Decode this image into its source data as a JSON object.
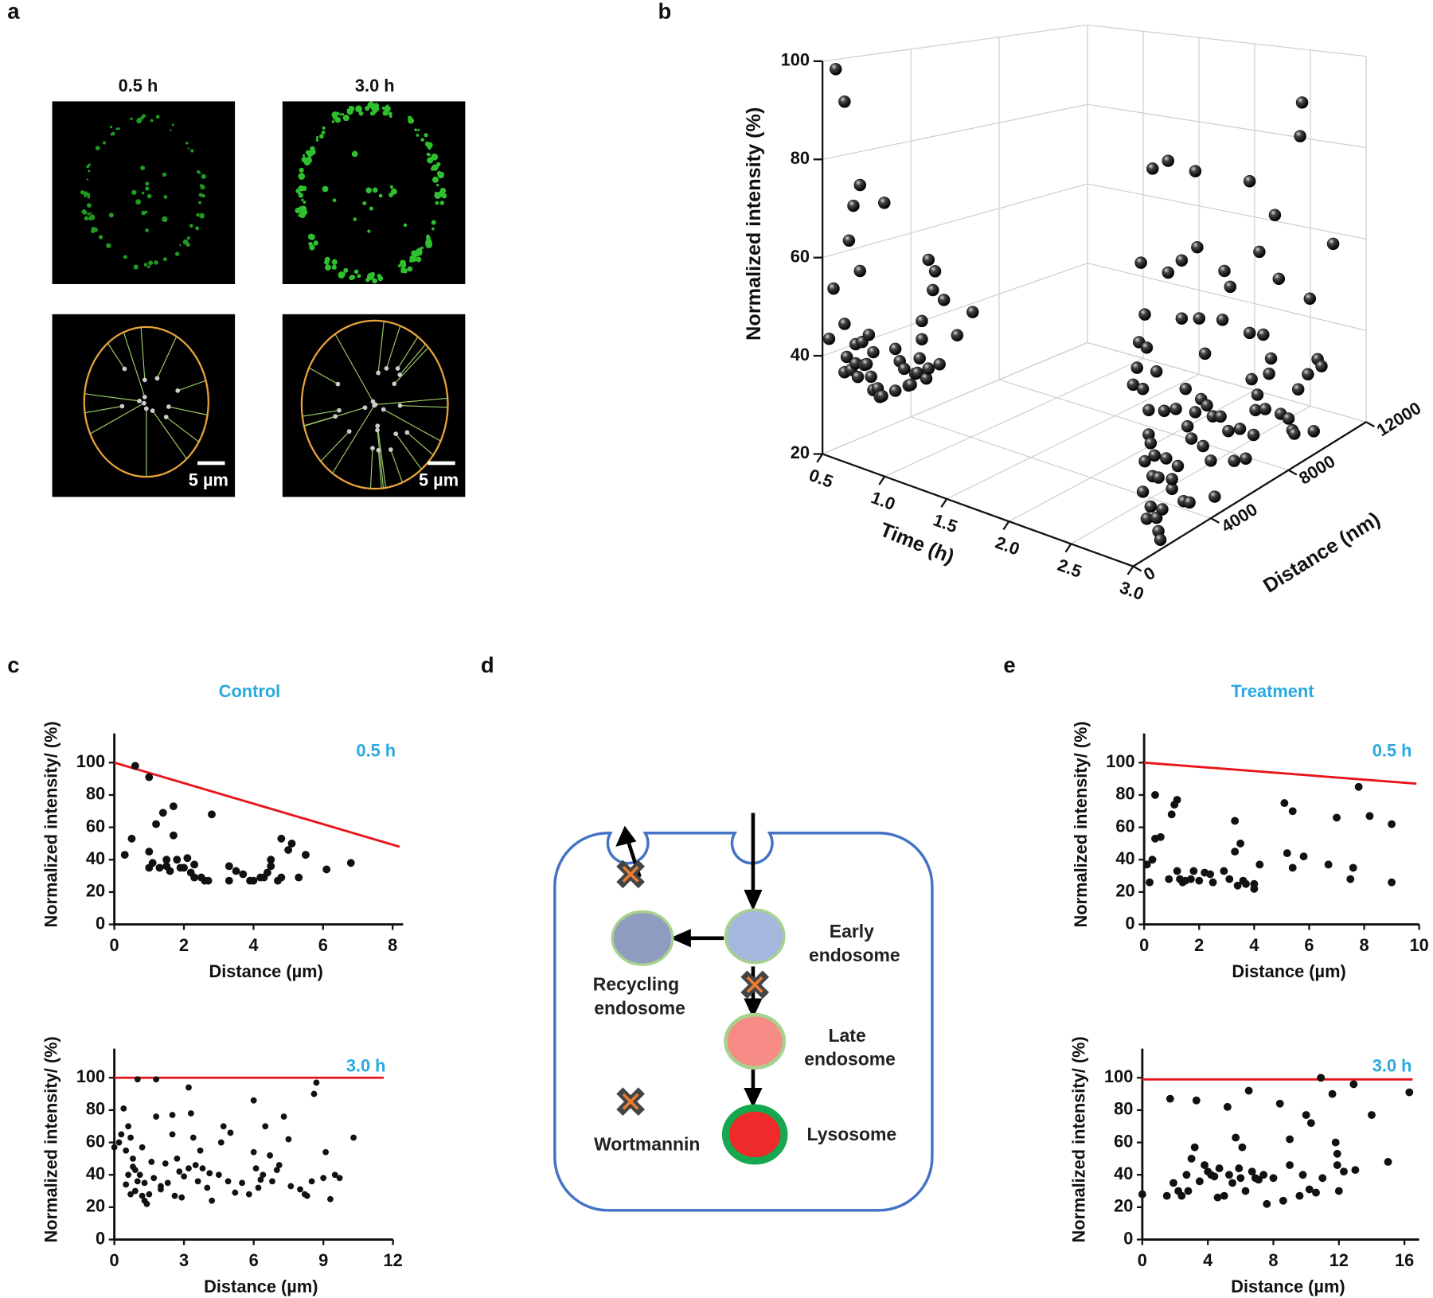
{
  "panel_labels": [
    "a",
    "b",
    "c",
    "d",
    "e"
  ],
  "panel_a": {
    "titles": [
      "0.5 h",
      "3.0 h"
    ],
    "scale_bar": "5 µm"
  },
  "diagram": {
    "nodes": [
      {
        "label": [
          "Early",
          "endosome"
        ]
      },
      {
        "label": [
          "Recycling",
          "endosome"
        ]
      },
      {
        "label": [
          "Late",
          "endosome"
        ]
      },
      {
        "label": [
          "Lysosome"
        ]
      }
    ],
    "legend": "Wortmannin"
  },
  "chart_data": [
    {
      "type": "scatter3d",
      "xlabel": "Time (h)",
      "ylabel": "Distance (nm)",
      "zlabel": "Normalized intensity (%)",
      "xlim": [
        0.5,
        3
      ],
      "xticks": [
        0.5,
        {
          "value": 1,
          "label": "1.0"
        },
        1.5,
        {
          "value": 2,
          "label": "2.0"
        },
        2.5,
        {
          "value": 3,
          "label": "3.0"
        }
      ],
      "ylim": [
        0,
        12000
      ],
      "yticks": [
        0,
        4000,
        8000,
        12000
      ],
      "zlim": [
        20,
        100
      ],
      "zticks": [
        20,
        40,
        60,
        80,
        100
      ],
      "grid": true,
      "series": [
        {
          "time": 0.5,
          "color": "#111111",
          "distance": [
            300,
            500,
            600,
            1000,
            1000,
            1000,
            1100,
            1200,
            1300,
            1400,
            1500,
            1500,
            1600,
            1700,
            1700,
            1800,
            1900,
            2000,
            2100,
            2200,
            2300,
            2300,
            2500,
            2600,
            2700,
            2800,
            3300,
            3300,
            3500,
            3700,
            3900,
            4000,
            4200,
            4300,
            4400,
            4500,
            4500,
            4700,
            4800,
            4800,
            5000,
            5100,
            5300,
            5500,
            6100,
            6800
          ],
          "intensity": [
            43,
            53,
            98,
            91,
            35,
            45,
            38,
            62,
            35,
            69,
            36,
            40,
            33,
            73,
            55,
            40,
            35,
            35,
            41,
            32,
            29,
            37,
            29,
            27,
            27,
            68,
            36,
            27,
            33,
            31,
            27,
            27,
            29,
            29,
            32,
            40,
            36,
            27,
            29,
            53,
            46,
            50,
            29,
            43,
            34,
            38
          ]
        },
        {
          "time": 3,
          "color": "#111111",
          "distance": [
            0,
            200,
            300,
            400,
            500,
            500,
            600,
            600,
            700,
            700,
            800,
            800,
            900,
            900,
            1000,
            1000,
            1100,
            1200,
            1200,
            1300,
            1300,
            1400,
            1500,
            1600,
            1700,
            1800,
            1800,
            2000,
            2000,
            2200,
            2300,
            2500,
            2500,
            2600,
            2700,
            2800,
            2900,
            3000,
            3200,
            3200,
            3300,
            3400,
            3500,
            3600,
            3700,
            3800,
            4000,
            4100,
            4200,
            4500,
            4600,
            4700,
            4900,
            5000,
            5200,
            5500,
            5800,
            6000,
            6000,
            6100,
            6200,
            6300,
            6400,
            6500,
            6700,
            6800,
            7000,
            7100,
            7300,
            7500,
            7600,
            8000,
            8200,
            8300,
            8500,
            8600,
            8700,
            9000,
            9100,
            9300,
            9500,
            9700,
            10300
          ],
          "intensity": [
            57,
            60,
            65,
            81,
            34,
            55,
            40,
            70,
            63,
            28,
            45,
            50,
            43,
            30,
            99,
            36,
            40,
            27,
            57,
            24,
            35,
            22,
            28,
            48,
            38,
            99,
            76,
            31,
            33,
            47,
            35,
            77,
            65,
            27,
            50,
            42,
            26,
            39,
            44,
            94,
            78,
            63,
            46,
            36,
            55,
            44,
            32,
            41,
            24,
            40,
            60,
            70,
            36,
            66,
            29,
            35,
            28,
            86,
            54,
            44,
            32,
            37,
            40,
            70,
            52,
            36,
            43,
            46,
            76,
            62,
            33,
            31,
            28,
            27,
            36,
            90,
            97,
            38,
            54,
            25,
            40,
            38,
            63
          ]
        }
      ]
    },
    {
      "type": "scatter",
      "title": "Control",
      "annotation": "0.5 h",
      "annotation_color": "#29a9e0",
      "xlabel": "Distance (µm)",
      "ylabel": "Normalized intensity/ (%)",
      "xlim": [
        0,
        8.3
      ],
      "xticks": [
        0,
        2,
        4,
        6,
        8
      ],
      "ylim": [
        0,
        118
      ],
      "yticks": [
        0,
        20,
        40,
        60,
        80,
        100
      ],
      "series": [
        {
          "color": "#111111",
          "x": [
            0.3,
            0.5,
            0.6,
            1.0,
            1.0,
            1.0,
            1.1,
            1.2,
            1.3,
            1.4,
            1.5,
            1.5,
            1.6,
            1.7,
            1.7,
            1.8,
            1.9,
            2.0,
            2.1,
            2.2,
            2.3,
            2.3,
            2.5,
            2.6,
            2.7,
            2.8,
            3.3,
            3.3,
            3.5,
            3.7,
            3.9,
            4.0,
            4.2,
            4.3,
            4.4,
            4.5,
            4.5,
            4.7,
            4.8,
            4.8,
            5.0,
            5.1,
            5.3,
            5.5,
            6.1,
            6.8
          ],
          "y": [
            43,
            53,
            98,
            91,
            35,
            45,
            38,
            62,
            35,
            69,
            36,
            40,
            33,
            73,
            55,
            40,
            35,
            35,
            41,
            32,
            29,
            37,
            29,
            27,
            27,
            68,
            36,
            27,
            33,
            31,
            27,
            27,
            29,
            29,
            32,
            40,
            36,
            27,
            29,
            53,
            46,
            50,
            29,
            43,
            34,
            38
          ]
        }
      ],
      "fit": {
        "color": "#e8141b",
        "x": [
          0,
          8.2
        ],
        "y": [
          100,
          48
        ]
      }
    },
    {
      "type": "scatter",
      "annotation": "3.0 h",
      "annotation_color": "#29a9e0",
      "xlabel": "Distance (µm)",
      "ylabel": "Normalized intensity/ (%)",
      "xlim": [
        0,
        12
      ],
      "xticks": [
        0,
        3,
        6,
        9,
        12
      ],
      "ylim": [
        0,
        118
      ],
      "yticks": [
        0,
        20,
        40,
        60,
        80,
        100
      ],
      "series": [
        {
          "color": "#111111",
          "x": [
            0,
            0.2,
            0.3,
            0.4,
            0.5,
            0.5,
            0.6,
            0.6,
            0.7,
            0.7,
            0.8,
            0.8,
            0.9,
            0.9,
            1,
            1,
            1.1,
            1.2,
            1.2,
            1.3,
            1.3,
            1.4,
            1.5,
            1.6,
            1.7,
            1.8,
            1.8,
            2,
            2,
            2.2,
            2.3,
            2.5,
            2.5,
            2.6,
            2.7,
            2.8,
            2.9,
            3,
            3.2,
            3.2,
            3.3,
            3.4,
            3.5,
            3.6,
            3.7,
            3.8,
            4,
            4.1,
            4.2,
            4.5,
            4.6,
            4.7,
            4.9,
            5,
            5.2,
            5.5,
            5.8,
            6,
            6,
            6.1,
            6.2,
            6.3,
            6.4,
            6.5,
            6.7,
            6.8,
            7,
            7.1,
            7.3,
            7.5,
            7.6,
            8,
            8.2,
            8.3,
            8.5,
            8.6,
            8.7,
            9,
            9.1,
            9.3,
            9.5,
            9.7,
            10.3
          ],
          "y": [
            57,
            60,
            65,
            81,
            34,
            55,
            40,
            70,
            63,
            28,
            45,
            50,
            43,
            30,
            99,
            36,
            40,
            27,
            57,
            24,
            35,
            22,
            28,
            48,
            38,
            99,
            76,
            31,
            33,
            47,
            35,
            77,
            65,
            27,
            50,
            42,
            26,
            39,
            44,
            94,
            78,
            63,
            46,
            36,
            55,
            44,
            32,
            41,
            24,
            40,
            60,
            70,
            36,
            66,
            29,
            35,
            28,
            86,
            54,
            44,
            32,
            37,
            40,
            70,
            52,
            36,
            43,
            46,
            76,
            62,
            33,
            31,
            28,
            27,
            36,
            90,
            97,
            38,
            54,
            25,
            40,
            38,
            63
          ]
        }
      ],
      "fit": {
        "color": "#e8141b",
        "x": [
          0,
          11.6
        ],
        "y": [
          100,
          100
        ]
      }
    },
    {
      "type": "scatter",
      "title": "Treatment",
      "annotation": "0.5 h",
      "annotation_color": "#29a9e0",
      "xlabel": "Distance (µm)",
      "ylabel": "Normalized intensity/ (%)",
      "xlim": [
        0,
        10
      ],
      "xticks": [
        0,
        2,
        4,
        6,
        8,
        10
      ],
      "ylim": [
        0,
        118
      ],
      "yticks": [
        0,
        20,
        40,
        60,
        80,
        100
      ],
      "series": [
        {
          "color": "#111111",
          "x": [
            0.1,
            0.2,
            0.3,
            0.4,
            0.4,
            0.6,
            0.9,
            1,
            1.1,
            1.2,
            1.2,
            1.3,
            1.4,
            1.5,
            1.7,
            1.8,
            2,
            2.2,
            2.4,
            2.5,
            2.9,
            3.1,
            3.3,
            3.3,
            3.4,
            3.5,
            3.6,
            3.7,
            4,
            4,
            4.2,
            5.1,
            5.2,
            5.4,
            5.4,
            5.8,
            6.7,
            7,
            7.5,
            7.6,
            7.8,
            8.2,
            9,
            9
          ],
          "y": [
            37,
            26,
            40,
            53,
            80,
            54,
            28,
            68,
            74,
            77,
            33,
            28,
            26,
            27,
            28,
            33,
            27,
            32,
            31,
            26,
            33,
            28,
            64,
            45,
            24,
            50,
            27,
            25,
            22,
            25,
            37,
            75,
            44,
            35,
            70,
            42,
            37,
            66,
            28,
            35,
            85,
            67,
            62,
            26
          ]
        }
      ],
      "fit": {
        "color": "#e8141b",
        "x": [
          0,
          9.9
        ],
        "y": [
          100,
          87
        ]
      }
    },
    {
      "type": "scatter",
      "annotation": "3.0 h",
      "annotation_color": "#29a9e0",
      "xlabel": "Distance (µm)",
      "ylabel": "Normalized intensity/ (%)",
      "xlim": [
        0,
        16.9
      ],
      "xticks": [
        0,
        4,
        8,
        12,
        16
      ],
      "ylim": [
        0,
        118
      ],
      "yticks": [
        0,
        20,
        40,
        60,
        80,
        100
      ],
      "series": [
        {
          "color": "#111111",
          "x": [
            0,
            1.5,
            1.7,
            1.9,
            2.2,
            2.4,
            2.7,
            2.8,
            3,
            3.2,
            3.3,
            3.5,
            3.8,
            4,
            4.2,
            4.4,
            4.6,
            4.7,
            5,
            5.2,
            5.3,
            5.5,
            5.7,
            5.9,
            6,
            6.1,
            6.3,
            6.5,
            6.7,
            6.9,
            7.1,
            7.4,
            7.6,
            8,
            8.4,
            8.6,
            9,
            9,
            9.6,
            9.8,
            10,
            10.2,
            10.3,
            10.6,
            10.9,
            11,
            11.6,
            11.8,
            11.9,
            11.9,
            12,
            12.3,
            12.9,
            13,
            14,
            15,
            16.3
          ],
          "y": [
            28,
            27,
            87,
            35,
            30,
            27,
            40,
            30,
            50,
            57,
            86,
            36,
            46,
            42,
            40,
            39,
            26,
            44,
            27,
            82,
            40,
            35,
            63,
            44,
            38,
            57,
            30,
            92,
            42,
            38,
            37,
            40,
            22,
            38,
            84,
            24,
            46,
            62,
            27,
            40,
            77,
            31,
            72,
            29,
            100,
            38,
            90,
            60,
            53,
            46,
            30,
            42,
            96,
            43,
            77,
            48,
            91
          ]
        }
      ],
      "fit": {
        "color": "#e8141b",
        "x": [
          0,
          16.5
        ],
        "y": [
          99,
          99
        ]
      }
    }
  ]
}
